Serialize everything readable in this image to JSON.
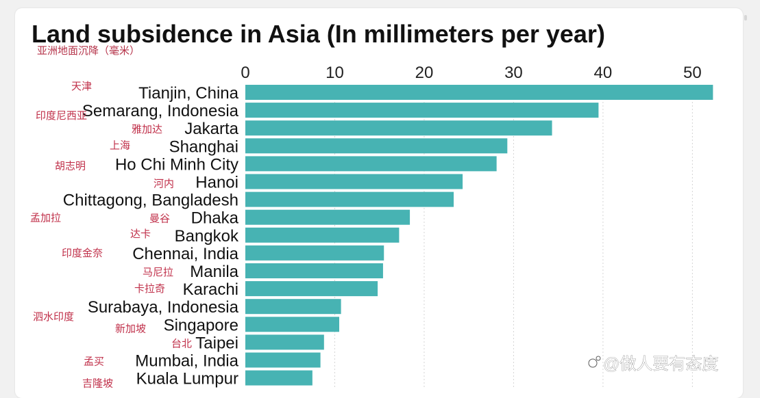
{
  "chart_data": {
    "type": "bar",
    "orientation": "horizontal",
    "title": "Land subsidence in Asia (In millimeters per year)",
    "subtitle": "亚洲地面沉降（毫米）",
    "xlim": [
      0,
      52.5
    ],
    "x_ticks": [
      0,
      10,
      20,
      30,
      40,
      50
    ],
    "grid": true,
    "bar_color": "#47b3b3",
    "categories": [
      "Tianjin, China",
      "Semarang, Indonesia",
      "Jakarta",
      "Shanghai",
      "Ho Chi Minh City",
      "Hanoi",
      "Chittagong, Bangladesh",
      "Dhaka",
      "Bangkok",
      "Chennai, India",
      "Manila",
      "Karachi",
      "Surabaya, Indonesia",
      "Singapore",
      "Taipei",
      "Mumbai, India",
      "Kuala Lumpur"
    ],
    "values": [
      52.3,
      39.5,
      34.3,
      29.3,
      28.1,
      24.3,
      23.3,
      18.4,
      17.2,
      15.5,
      15.4,
      14.8,
      10.7,
      10.5,
      8.8,
      8.4,
      7.5
    ],
    "annotations_cn": [
      "天津",
      "印度尼西亚",
      "雅加达",
      "上海",
      "胡志明",
      "河内",
      "孟加拉",
      "曼谷",
      "达卡",
      "印度金奈",
      "马尼拉",
      "卡拉奇",
      "泗水印度",
      "新加坡",
      "台北",
      "孟买",
      "吉隆坡"
    ]
  },
  "watermark": "@做人要有态度",
  "colors": {
    "bar": "#47b3b3",
    "annotation": "#c0304a"
  }
}
